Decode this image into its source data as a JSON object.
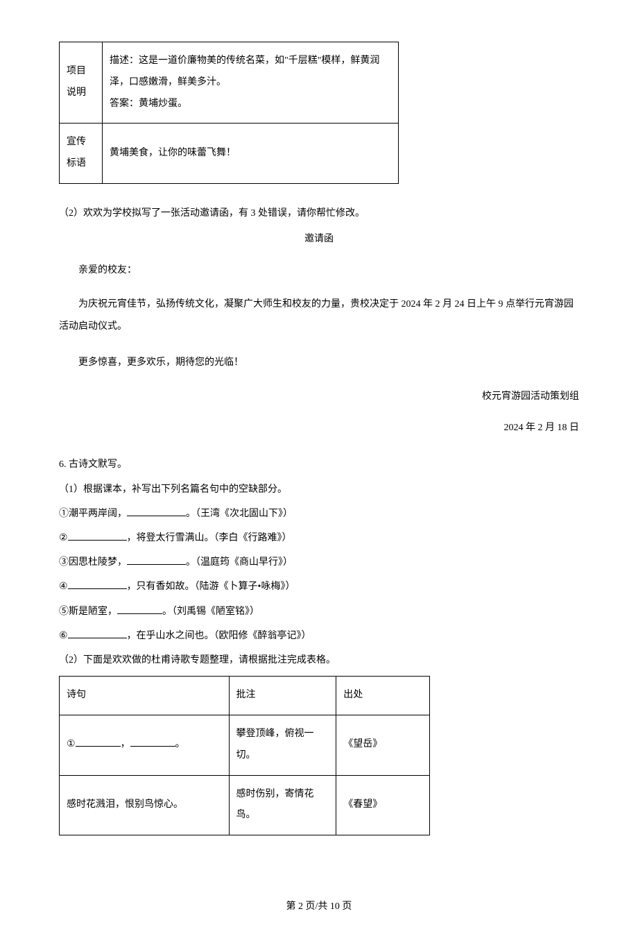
{
  "table1": {
    "rows": [
      {
        "label": "项目说明",
        "content": "描述：这是一道价廉物美的传统名菜，如\"千层糕\"模样，鲜黄润泽，口感嫩滑，鲜美多汁。",
        "answer_prefix": "答案：",
        "answer": "黄埔炒蛋。"
      },
      {
        "label": "宣传标语",
        "content": "黄埔美食，让你的味蕾飞舞！"
      }
    ]
  },
  "q2_prompt": "（2）欢欢为学校拟写了一张活动邀请函，有 3 处错误，请你帮忙修改。",
  "letter": {
    "title": "邀请函",
    "greeting": "亲爱的校友：",
    "body1": "为庆祝元宵佳节，弘扬传统文化，凝聚广大师生和校友的力量，贵校决定于 2024 年 2 月 24 日上午 9 点举行元宵游园活动启动仪式。",
    "body2": "更多惊喜，更多欢乐，期待您的光临！",
    "signature": "校元宵游园活动策划组",
    "date": "2024 年 2 月 18 日"
  },
  "q6": {
    "title": "6. 古诗文默写。",
    "part1_prompt": "（1）根据课本，补写出下列名篇名句中的空缺部分。",
    "items": [
      {
        "pre": "①潮平两岸阔，",
        "post": "。（王湾《次北固山下》）"
      },
      {
        "pre": "②",
        "post": "，将登太行雪满山。（李白《行路难》）"
      },
      {
        "pre": "③因思杜陵梦，",
        "post": "。（温庭筠《商山早行》）"
      },
      {
        "pre": "④",
        "post": "，只有香如故。（陆游《卜算子•咏梅》）"
      },
      {
        "pre": "⑤斯是陋室，",
        "post": "。（刘禹锡《陋室铭》）"
      },
      {
        "pre": "⑥",
        "post": "，在乎山水之间也。（欧阳修《醉翁亭记》）"
      }
    ],
    "part2_prompt": "（2）下面是欢欢做的杜甫诗歌专题整理，请根据批注完成表格。"
  },
  "table2": {
    "headers": [
      "诗句",
      "批注",
      "出处"
    ],
    "rows": [
      {
        "col1_prefix": "①",
        "col1_suffix": "。",
        "col2": "攀登顶峰，俯视一切。",
        "col3": "《望岳》"
      },
      {
        "col1_text": "感时花溅泪，恨别鸟惊心。",
        "col2": "感时伤别，寄情花鸟。",
        "col3": "《春望》"
      }
    ]
  },
  "footer": "第 2 页/共 10 页"
}
